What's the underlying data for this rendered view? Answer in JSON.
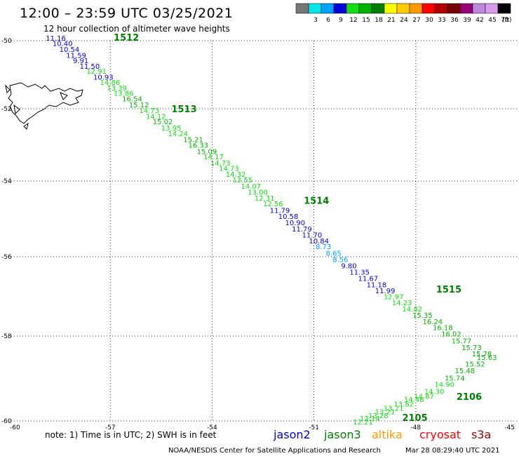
{
  "title": "12:00 – 23:59 UTC 03/25/2021",
  "subtitle": "12 hour collection of altimeter wave heights",
  "legend": {
    "unit": "(ft)",
    "bins": [
      {
        "color": "#777777",
        "label": ""
      },
      {
        "color": "#00e5e5",
        "label": "3"
      },
      {
        "color": "#00a0ff",
        "label": "6"
      },
      {
        "color": "#0000dd",
        "label": "9"
      },
      {
        "color": "#11dd11",
        "label": "12"
      },
      {
        "color": "#00b400",
        "label": "15"
      },
      {
        "color": "#008000",
        "label": "18"
      },
      {
        "color": "#ffff00",
        "label": "21"
      },
      {
        "color": "#ffcc00",
        "label": "24"
      },
      {
        "color": "#ff9900",
        "label": "27"
      },
      {
        "color": "#ff0000",
        "label": "30"
      },
      {
        "color": "#b00000",
        "label": "33"
      },
      {
        "color": "#770000",
        "label": "36"
      },
      {
        "color": "#990077",
        "label": "39"
      },
      {
        "color": "#bb88dd",
        "label": "42"
      },
      {
        "color": "#dd99ee",
        "label": "45"
      },
      {
        "color": "#000000",
        "label": "70"
      }
    ]
  },
  "axes": {
    "lon_ticks": [
      {
        "lon": -60,
        "label": "-60"
      },
      {
        "lon": -57,
        "label": "-57"
      },
      {
        "lon": -54,
        "label": "-54"
      },
      {
        "lon": -51,
        "label": "-51"
      },
      {
        "lon": -48,
        "label": "-48"
      },
      {
        "lon": -45,
        "label": "-45"
      }
    ],
    "lat_ticks": [
      {
        "lat": -50,
        "label": "-50"
      },
      {
        "lat": -52,
        "label": "-52"
      },
      {
        "lat": -54,
        "label": "-54"
      },
      {
        "lat": -56,
        "label": "-56"
      },
      {
        "lat": -58,
        "label": "-58"
      },
      {
        "lat": -60,
        "label": "-60"
      }
    ]
  },
  "passes": [
    {
      "label": "1512",
      "lon": -56.9,
      "lat": -50.0
    },
    {
      "label": "1513",
      "lon": -55.2,
      "lat": -52.1
    },
    {
      "label": "1514",
      "lon": -51.3,
      "lat": -54.6
    },
    {
      "label": "1515",
      "lon": -47.4,
      "lat": -56.9
    },
    {
      "label": "2106",
      "lon": -46.8,
      "lat": -59.5
    },
    {
      "label": "2105",
      "lon": -48.4,
      "lat": -60.0
    }
  ],
  "observations": [
    {
      "v": "11.16",
      "lon": -58.9,
      "lat": -50.0,
      "c": "#0000dd"
    },
    {
      "v": "10.40",
      "lon": -58.7,
      "lat": -50.15,
      "c": "#0000dd"
    },
    {
      "v": "10.54",
      "lon": -58.5,
      "lat": -50.33,
      "c": "#0000dd"
    },
    {
      "v": "11.59",
      "lon": -58.3,
      "lat": -50.5,
      "c": "#0000dd"
    },
    {
      "v": "9.91",
      "lon": -58.1,
      "lat": -50.66,
      "c": "#0000dd"
    },
    {
      "v": "11.50",
      "lon": -57.9,
      "lat": -50.82,
      "c": "#0000dd"
    },
    {
      "v": "12.91",
      "lon": -57.7,
      "lat": -50.97,
      "c": "#11dd11"
    },
    {
      "v": "10.93",
      "lon": -57.5,
      "lat": -51.14,
      "c": "#0000dd"
    },
    {
      "v": "14.86",
      "lon": -57.3,
      "lat": -51.3,
      "c": "#11dd11"
    },
    {
      "v": "13.39",
      "lon": -57.1,
      "lat": -51.46,
      "c": "#11dd11"
    },
    {
      "v": "13.86",
      "lon": -56.9,
      "lat": -51.62,
      "c": "#11dd11"
    },
    {
      "v": "16.54",
      "lon": -56.65,
      "lat": -51.78,
      "c": "#00b400"
    },
    {
      "v": "15.12",
      "lon": -56.45,
      "lat": -51.96,
      "c": "#00b400"
    },
    {
      "v": "14.73",
      "lon": -56.15,
      "lat": -52.12,
      "c": "#11dd11"
    },
    {
      "v": "14.12",
      "lon": -55.95,
      "lat": -52.28,
      "c": "#11dd11"
    },
    {
      "v": "15.02",
      "lon": -55.75,
      "lat": -52.43,
      "c": "#00b400"
    },
    {
      "v": "13.95",
      "lon": -55.5,
      "lat": -52.6,
      "c": "#11dd11"
    },
    {
      "v": "14.24",
      "lon": -55.3,
      "lat": -52.76,
      "c": "#11dd11"
    },
    {
      "v": "15.21",
      "lon": -54.85,
      "lat": -52.92,
      "c": "#00b400"
    },
    {
      "v": "16.33",
      "lon": -54.7,
      "lat": -53.08,
      "c": "#00b400"
    },
    {
      "v": "15.09",
      "lon": -54.45,
      "lat": -53.25,
      "c": "#00b400"
    },
    {
      "v": "14.17",
      "lon": -54.25,
      "lat": -53.4,
      "c": "#11dd11"
    },
    {
      "v": "14.73",
      "lon": -54.05,
      "lat": -53.57,
      "c": "#11dd11"
    },
    {
      "v": "14.73",
      "lon": -53.8,
      "lat": -53.72,
      "c": "#11dd11"
    },
    {
      "v": "14.32",
      "lon": -53.6,
      "lat": -53.88,
      "c": "#11dd11"
    },
    {
      "v": "13.55",
      "lon": -53.4,
      "lat": -54.04,
      "c": "#11dd11"
    },
    {
      "v": "14.07",
      "lon": -53.15,
      "lat": -54.2,
      "c": "#11dd11"
    },
    {
      "v": "13.00",
      "lon": -52.95,
      "lat": -54.36,
      "c": "#11dd11"
    },
    {
      "v": "12.31",
      "lon": -52.75,
      "lat": -54.52,
      "c": "#11dd11"
    },
    {
      "v": "12.56",
      "lon": -52.5,
      "lat": -54.67,
      "c": "#11dd11"
    },
    {
      "v": "11.79",
      "lon": -52.3,
      "lat": -54.84,
      "c": "#0000dd"
    },
    {
      "v": "10.58",
      "lon": -52.05,
      "lat": -55.0,
      "c": "#0000dd"
    },
    {
      "v": "10.90",
      "lon": -51.85,
      "lat": -55.17,
      "c": "#0000dd"
    },
    {
      "v": "11.79",
      "lon": -51.65,
      "lat": -55.33,
      "c": "#0000dd"
    },
    {
      "v": "11.70",
      "lon": -51.35,
      "lat": -55.49,
      "c": "#0000dd"
    },
    {
      "v": "10.84",
      "lon": -51.15,
      "lat": -55.65,
      "c": "#0000dd"
    },
    {
      "v": "8.73",
      "lon": -50.95,
      "lat": -55.8,
      "c": "#00a0ff"
    },
    {
      "v": "8.65",
      "lon": -50.65,
      "lat": -55.97,
      "c": "#00a0ff"
    },
    {
      "v": "8.56",
      "lon": -50.45,
      "lat": -56.13,
      "c": "#00a0ff"
    },
    {
      "v": "9.80",
      "lon": -50.2,
      "lat": -56.29,
      "c": "#0000dd"
    },
    {
      "v": "11.35",
      "lon": -49.95,
      "lat": -56.45,
      "c": "#0000dd"
    },
    {
      "v": "11.67",
      "lon": -49.7,
      "lat": -56.61,
      "c": "#0000dd"
    },
    {
      "v": "11.18",
      "lon": -49.45,
      "lat": -56.77,
      "c": "#0000dd"
    },
    {
      "v": "11.99",
      "lon": -49.2,
      "lat": -56.92,
      "c": "#0000dd"
    },
    {
      "v": "12.97",
      "lon": -48.95,
      "lat": -57.07,
      "c": "#11dd11"
    },
    {
      "v": "14.23",
      "lon": -48.7,
      "lat": -57.22,
      "c": "#11dd11"
    },
    {
      "v": "14.82",
      "lon": -48.4,
      "lat": -57.38,
      "c": "#11dd11"
    },
    {
      "v": "15.35",
      "lon": -48.1,
      "lat": -57.54,
      "c": "#00b400"
    },
    {
      "v": "16.24",
      "lon": -47.8,
      "lat": -57.7,
      "c": "#00b400"
    },
    {
      "v": "16.18",
      "lon": -47.5,
      "lat": -57.85,
      "c": "#00b400"
    },
    {
      "v": "16.02",
      "lon": -47.25,
      "lat": -58.01,
      "c": "#00b400"
    },
    {
      "v": "15.77",
      "lon": -46.95,
      "lat": -58.17,
      "c": "#00b400"
    },
    {
      "v": "15.73",
      "lon": -46.65,
      "lat": -58.33,
      "c": "#00b400"
    },
    {
      "v": "15.78",
      "lon": -46.35,
      "lat": -58.48,
      "c": "#00b400"
    },
    {
      "v": "15.63",
      "lon": -46.2,
      "lat": -58.56,
      "c": "#00b400"
    },
    {
      "v": "15.52",
      "lon": -46.55,
      "lat": -58.72,
      "c": "#00b400"
    },
    {
      "v": "15.48",
      "lon": -46.85,
      "lat": -58.88,
      "c": "#00b400"
    },
    {
      "v": "15.74",
      "lon": -47.15,
      "lat": -59.05,
      "c": "#00b400"
    },
    {
      "v": "14.90",
      "lon": -47.45,
      "lat": -59.2,
      "c": "#11dd11"
    },
    {
      "v": "14.30",
      "lon": -47.75,
      "lat": -59.36,
      "c": "#11dd11"
    },
    {
      "v": "14.87",
      "lon": -48.05,
      "lat": -59.48,
      "c": "#11dd11"
    },
    {
      "v": "14.48",
      "lon": -48.35,
      "lat": -59.55,
      "c": "#11dd11"
    },
    {
      "v": "13.82",
      "lon": -48.65,
      "lat": -59.66,
      "c": "#11dd11"
    },
    {
      "v": "13.21",
      "lon": -48.95,
      "lat": -59.76,
      "c": "#11dd11"
    },
    {
      "v": "13.21",
      "lon": -49.2,
      "lat": -59.84,
      "c": "#11dd11"
    },
    {
      "v": "13.28",
      "lon": -49.4,
      "lat": -59.93,
      "c": "#11dd11"
    },
    {
      "v": "13.14",
      "lon": -49.65,
      "lat": -60.0,
      "c": "#11dd11"
    },
    {
      "v": "12.21",
      "lon": -49.85,
      "lat": -60.08,
      "c": "#11dd11"
    }
  ],
  "land_label": "",
  "note": "note: 1) Time is in UTC; 2) SWH is in feet",
  "satellites": [
    {
      "name": "jason2",
      "color": "#0000dd"
    },
    {
      "name": "jason3",
      "color": "#008000"
    },
    {
      "name": "altika",
      "color": "#ff9900"
    },
    {
      "name": "cryosat",
      "color": "#ff0000"
    },
    {
      "name": "s3a",
      "color": "#990000"
    }
  ],
  "credit_left": "NOAA/NESDIS Center for Satellite Applications and Research",
  "credit_right": "Mar 28 08:29:40 UTC 2021"
}
